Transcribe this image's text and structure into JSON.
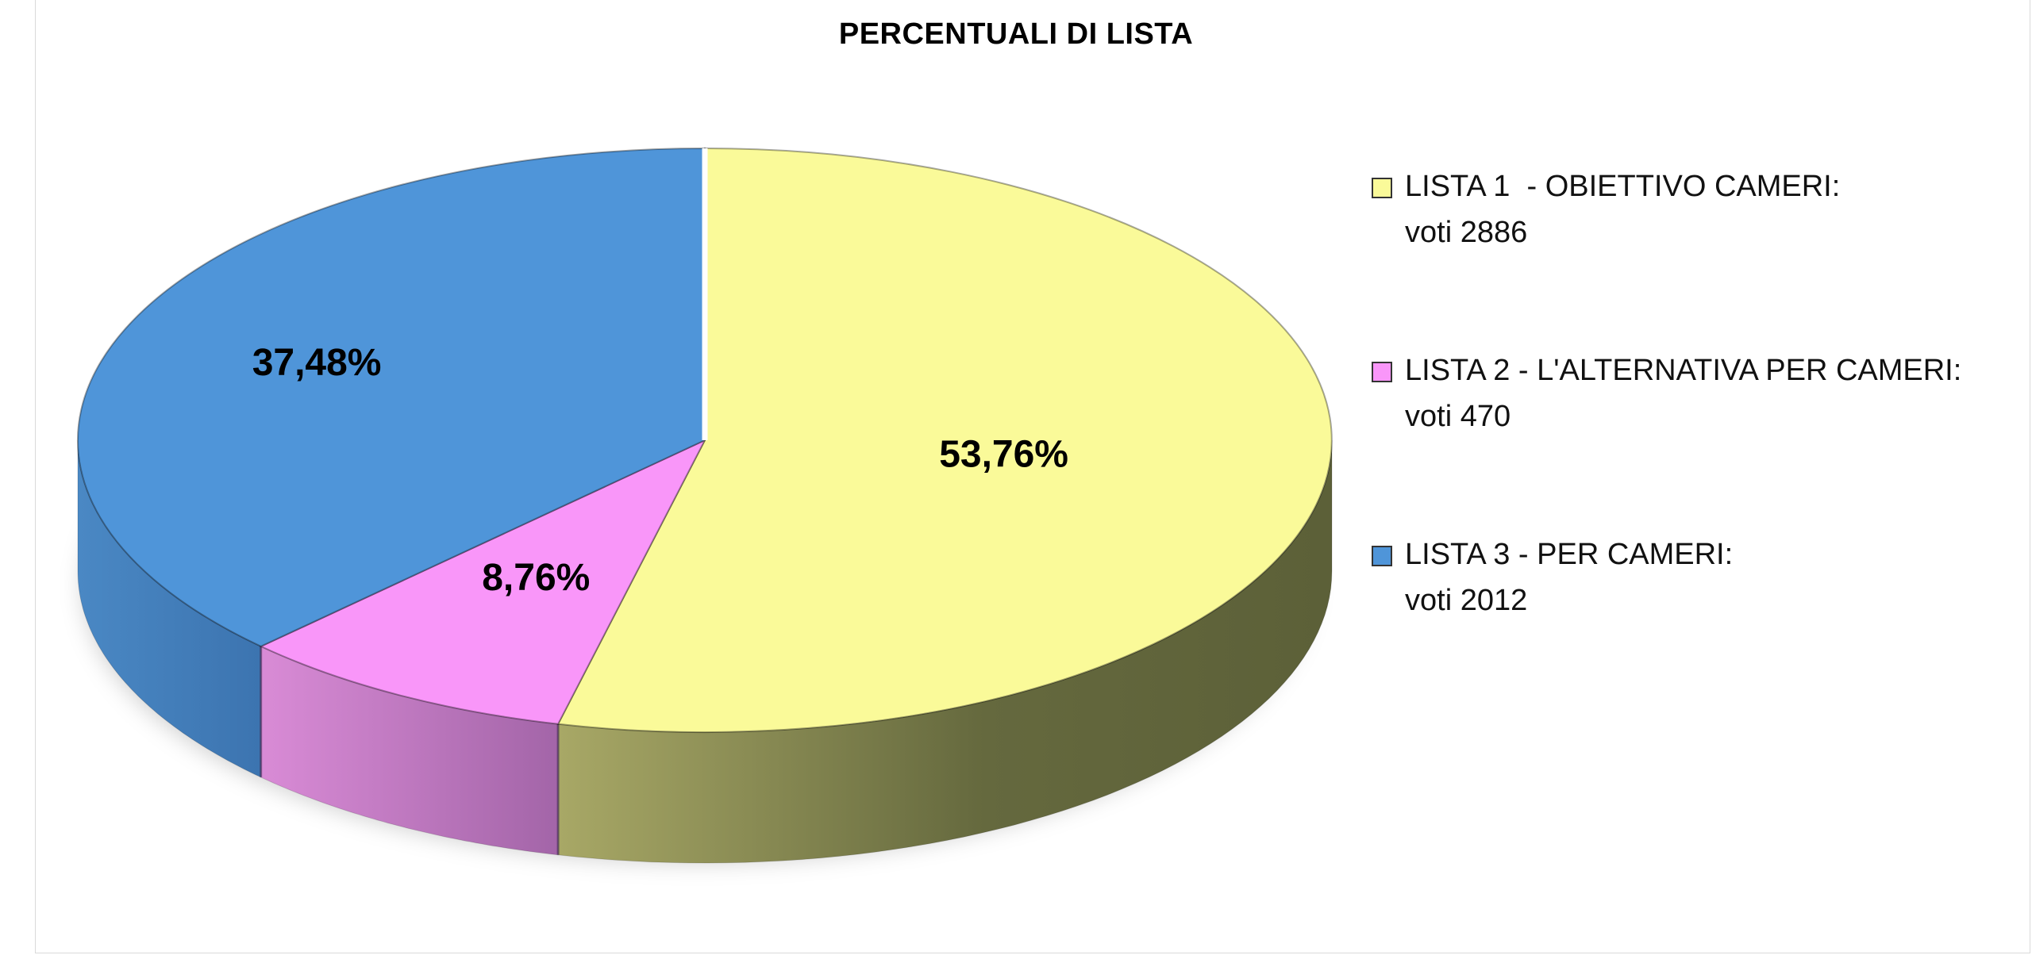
{
  "chart_data": {
    "type": "pie",
    "title": "PERCENTUALI DI LISTA",
    "slices": [
      {
        "name_line1": "LISTA 1  - OBIETTIVO CAMERI:",
        "name_line2": "voti 2886",
        "votes": 2886,
        "percent": 53.76,
        "label": "53,76%",
        "color": "#FAFA99"
      },
      {
        "name_line1": "LISTA 2 - L'ALTERNATIVA PER CAMERI:",
        "name_line2": "voti 470",
        "votes": 470,
        "percent": 8.76,
        "label": "8,76%",
        "color": "#F996F9"
      },
      {
        "name_line1": "LISTA 3 - PER CAMERI:",
        "name_line2": "voti 2012",
        "votes": 2012,
        "percent": 37.48,
        "label": "37,48%",
        "color": "#4F95D9"
      }
    ],
    "legend_position": "right",
    "style": "3d"
  }
}
